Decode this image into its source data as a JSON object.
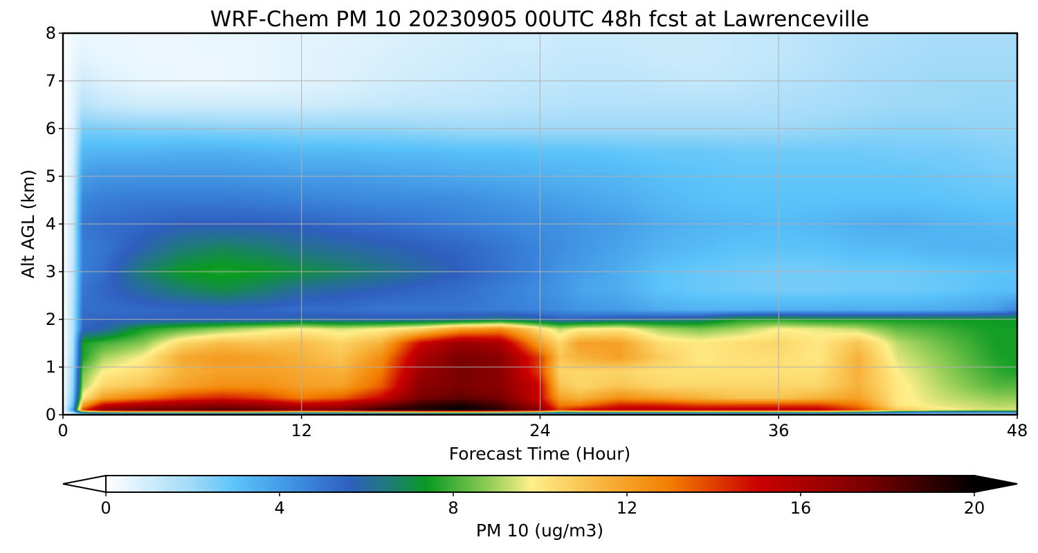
{
  "chart_data": {
    "type": "heatmap",
    "title": "WRF-Chem PM 10  20230905 00UTC 48h fcst at Lawrenceville",
    "xlabel": "Forecast Time (Hour)",
    "ylabel": "Alt AGL (km)",
    "xlim": [
      0,
      48
    ],
    "ylim": [
      0,
      8
    ],
    "x_ticks": [
      "0",
      "12",
      "24",
      "36",
      "48"
    ],
    "y_ticks": [
      "0",
      "1",
      "2",
      "3",
      "4",
      "5",
      "6",
      "7",
      "8"
    ],
    "grid": true,
    "colorbar": {
      "label": "PM 10  (ug/m3)",
      "range": [
        0,
        20
      ],
      "extend": "both",
      "ticks": [
        "0",
        "4",
        "8",
        "12",
        "16",
        "20"
      ],
      "stops": [
        {
          "v": 0,
          "c": "#ffffff"
        },
        {
          "v": 2,
          "c": "#9fd9f8"
        },
        {
          "v": 3,
          "c": "#5ac3f9"
        },
        {
          "v": 4.6,
          "c": "#3a86dc"
        },
        {
          "v": 5.6,
          "c": "#2f5fbf"
        },
        {
          "v": 6.5,
          "c": "#1f7a7a"
        },
        {
          "v": 7.4,
          "c": "#0a9a22"
        },
        {
          "v": 8.8,
          "c": "#8ecc55"
        },
        {
          "v": 9.8,
          "c": "#ffef8a"
        },
        {
          "v": 11.5,
          "c": "#f7b23a"
        },
        {
          "v": 13,
          "c": "#f27d00"
        },
        {
          "v": 15,
          "c": "#cc0000"
        },
        {
          "v": 17.5,
          "c": "#7a0000"
        },
        {
          "v": 20,
          "c": "#000000"
        }
      ]
    },
    "time_hours": [
      0,
      0.5,
      1,
      2,
      4,
      6,
      8,
      10,
      12,
      14,
      16,
      18,
      20,
      22,
      24,
      25,
      26,
      28,
      30,
      32,
      34,
      36,
      38,
      40,
      42,
      44,
      46,
      47,
      48
    ],
    "altitude_km": [
      0,
      0.1,
      0.2,
      0.35,
      0.6,
      0.9,
      1.2,
      1.5,
      1.8,
      2.0,
      2.2,
      2.6,
      3.0,
      3.5,
      4.0,
      4.5,
      5.0,
      5.5,
      6.0,
      6.5,
      7.0,
      7.5,
      8.0
    ],
    "pm10_ug_m3": [
      [
        0,
        0,
        0,
        0,
        0,
        0,
        0,
        0,
        0,
        0,
        0,
        0,
        0,
        0,
        0,
        0,
        0,
        0,
        0,
        0,
        0,
        0,
        0,
        0,
        0,
        0,
        0,
        0,
        0
      ],
      [
        0,
        4,
        14,
        17,
        18,
        18,
        18.5,
        18,
        17,
        17.5,
        19,
        19.5,
        20,
        19,
        17,
        14,
        15,
        15.5,
        15.5,
        15.5,
        15.5,
        15.5,
        15.5,
        14,
        11,
        10,
        9.5,
        9.5,
        9.5
      ],
      [
        0,
        3,
        12,
        15,
        16,
        16.5,
        17,
        16.5,
        15.5,
        16,
        17.5,
        19,
        19.5,
        18.5,
        16,
        13,
        13,
        14.5,
        14.5,
        14,
        14,
        14,
        14,
        13,
        10,
        9.6,
        9.3,
        9.1,
        9.2
      ],
      [
        0,
        2.5,
        10,
        12,
        13,
        14,
        14.5,
        14,
        13,
        13.5,
        15,
        17.5,
        18,
        17.5,
        15,
        12,
        11.5,
        12.5,
        12,
        11.5,
        11,
        11,
        11.5,
        12,
        10,
        9.4,
        9,
        8.8,
        8.8
      ],
      [
        0,
        2.2,
        9,
        10.5,
        11,
        12,
        12.5,
        12.5,
        12,
        12,
        13.5,
        17,
        17.5,
        17,
        15,
        11,
        10.5,
        11,
        10.5,
        10.5,
        10.5,
        10.5,
        10.5,
        11.5,
        10,
        9.2,
        8.5,
        8.2,
        8.2
      ],
      [
        0,
        2,
        8.5,
        9.8,
        10.3,
        11.5,
        12,
        12,
        11.8,
        11.5,
        13,
        16.5,
        17.5,
        17,
        14,
        10.5,
        10.5,
        10.5,
        10.2,
        10.2,
        10.2,
        10.2,
        10.2,
        11.5,
        9.8,
        9,
        8.2,
        7.8,
        7.6
      ],
      [
        0,
        1.8,
        7.6,
        9,
        9.8,
        11.8,
        12.2,
        12,
        11.5,
        11,
        12.5,
        16,
        17.5,
        17,
        14,
        11,
        11.5,
        12,
        10.8,
        10,
        10.2,
        10.3,
        10,
        11.5,
        9.5,
        8.8,
        8,
        7.6,
        7.5
      ],
      [
        0,
        1.6,
        7.5,
        8,
        8.7,
        10.5,
        11.2,
        11,
        11.2,
        10.6,
        11.5,
        15,
        16.5,
        16,
        12,
        10.5,
        12,
        12,
        10.3,
        10,
        10.3,
        10.5,
        10,
        11,
        9.2,
        8.5,
        7.8,
        7.5,
        7.5
      ],
      [
        0,
        1.5,
        5.5,
        5.8,
        7.5,
        8.2,
        8.8,
        9.4,
        9.8,
        9.4,
        9.8,
        10.5,
        12,
        12.5,
        10.2,
        9.2,
        9.8,
        10,
        9,
        8.6,
        9,
        9.8,
        9.6,
        9.2,
        8.3,
        8,
        7.6,
        7.5,
        7.5
      ],
      [
        0,
        1.5,
        5.3,
        5.5,
        5.5,
        5.6,
        5.6,
        5.6,
        6,
        5.8,
        5.8,
        5.8,
        6,
        6.5,
        6,
        5.6,
        5.6,
        6,
        6.2,
        6.4,
        7.5,
        7.6,
        7.3,
        7.4,
        7.4,
        7.4,
        7.4,
        7.4,
        7.4
      ],
      [
        0,
        1.5,
        5.2,
        5.2,
        5.3,
        5.4,
        5.5,
        5.4,
        5.2,
        5.2,
        5,
        5,
        5,
        4.8,
        4.6,
        4.4,
        4.2,
        4,
        3.6,
        3.4,
        3.4,
        3.5,
        3.5,
        3.5,
        3.5,
        3.6,
        3.8,
        4,
        4.6
      ],
      [
        0,
        1.4,
        5,
        5.4,
        6,
        6.6,
        7,
        6.6,
        6,
        5.8,
        5.6,
        5.4,
        5.2,
        4.8,
        4.4,
        4.2,
        3.8,
        3.6,
        3,
        2.8,
        2.7,
        2.6,
        2.6,
        2.7,
        2.7,
        2.8,
        3,
        3.1,
        3.1
      ],
      [
        0,
        1.3,
        4.8,
        5.2,
        6.6,
        7.4,
        7.6,
        7.4,
        7.1,
        6.8,
        6.4,
        6,
        5.6,
        5.1,
        4.6,
        4.2,
        4,
        3.6,
        3,
        2.8,
        2.7,
        2.6,
        2.6,
        2.7,
        2.7,
        2.8,
        2.9,
        3,
        3
      ],
      [
        0,
        1.2,
        4.8,
        5,
        5.8,
        6.5,
        6.8,
        6.6,
        6.2,
        6,
        5.8,
        5.6,
        5.4,
        5,
        4.6,
        4.4,
        4.2,
        3.8,
        3.4,
        3.2,
        3,
        3,
        3,
        3.2,
        3.2,
        3.4,
        3.4,
        3.4,
        3.4
      ],
      [
        0,
        1.1,
        5,
        5.2,
        5.4,
        5.6,
        5.6,
        5.6,
        5.5,
        5.3,
        5.2,
        5,
        4.8,
        4.6,
        4.4,
        4.3,
        4.2,
        4,
        3.6,
        3.4,
        3.3,
        3.2,
        3.3,
        3.5,
        3.6,
        3.4,
        3.3,
        3.2,
        3.2
      ],
      [
        0,
        1,
        4.6,
        4.8,
        4.9,
        4.9,
        4.9,
        4.8,
        4.7,
        4.6,
        4.5,
        4.5,
        4.4,
        4.2,
        4,
        3.9,
        3.8,
        3.6,
        3.3,
        3.1,
        3,
        3,
        3,
        3,
        3,
        3,
        2.9,
        2.9,
        2.9
      ],
      [
        0,
        0.9,
        4,
        4.2,
        4.2,
        4.2,
        4.2,
        4.1,
        4,
        4,
        3.9,
        3.8,
        3.7,
        3.6,
        3.5,
        3.4,
        3.4,
        3.3,
        3.1,
        3,
        2.9,
        2.9,
        2.9,
        2.9,
        2.9,
        2.8,
        2.7,
        2.6,
        2.6
      ],
      [
        0,
        0.8,
        3.3,
        3.4,
        3.4,
        3.5,
        3.5,
        3.4,
        3.3,
        3.3,
        3.2,
        3.2,
        3.1,
        3.1,
        3,
        3,
        3,
        2.9,
        2.8,
        2.8,
        2.7,
        2.7,
        2.7,
        2.7,
        2.6,
        2.6,
        2.5,
        2.4,
        2.4
      ],
      [
        0,
        0.7,
        2.5,
        2.5,
        2.4,
        2.4,
        2.3,
        2.3,
        2.2,
        2.2,
        2.2,
        2.1,
        2,
        2,
        2,
        2,
        2,
        2,
        2,
        2,
        2,
        2,
        2.1,
        2.2,
        2.3,
        2.3,
        2.2,
        2.2,
        2.2
      ],
      [
        0,
        0.6,
        1.5,
        1.2,
        1,
        1,
        1,
        1,
        1,
        1.1,
        1.2,
        1.3,
        1.3,
        1.4,
        1.5,
        1.5,
        1.6,
        1.6,
        1.6,
        1.6,
        1.6,
        1.7,
        1.8,
        1.9,
        2,
        2,
        2.1,
        2.1,
        2.1
      ],
      [
        0,
        0.5,
        1,
        0.7,
        0.5,
        0.4,
        0.4,
        0.5,
        0.6,
        0.7,
        0.9,
        1,
        1.1,
        1.2,
        1.3,
        1.3,
        1.4,
        1.4,
        1.3,
        1.2,
        1.3,
        1.5,
        1.6,
        1.8,
        1.9,
        2,
        2,
        2,
        2
      ],
      [
        0,
        0.4,
        0.6,
        0.5,
        0.4,
        0.4,
        0.4,
        0.5,
        0.6,
        0.7,
        0.8,
        0.9,
        1,
        1.1,
        1.1,
        1.2,
        1.2,
        1.2,
        1.1,
        1.1,
        1.2,
        1.3,
        1.5,
        1.7,
        1.8,
        1.9,
        1.9,
        1.9,
        1.9
      ],
      [
        0,
        0.3,
        0.4,
        0.4,
        0.4,
        0.4,
        0.5,
        0.5,
        0.6,
        0.6,
        0.7,
        0.8,
        0.9,
        1,
        1,
        1.1,
        1.1,
        1.1,
        1.1,
        1.1,
        1.2,
        1.3,
        1.5,
        1.6,
        1.7,
        1.8,
        1.8,
        1.8,
        1.8
      ]
    ]
  }
}
